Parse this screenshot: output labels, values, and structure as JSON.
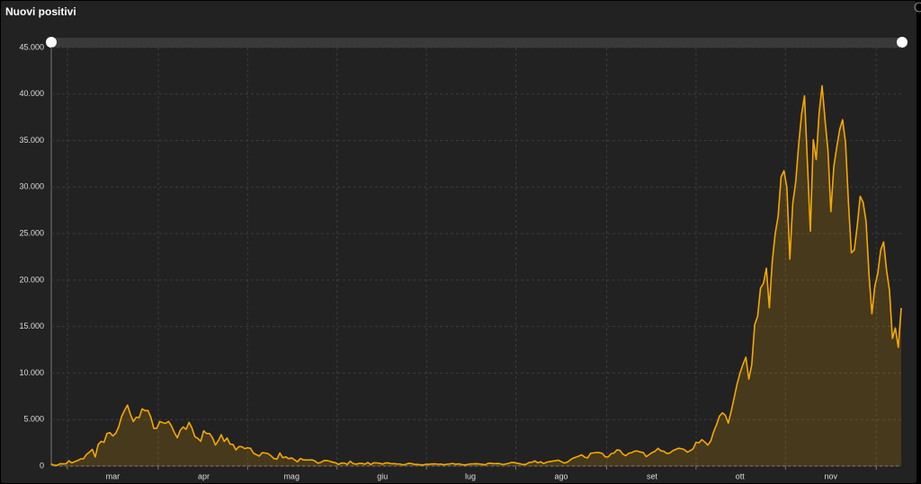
{
  "chart_data": {
    "type": "area",
    "title": "Nuovi positivi",
    "categories": [
      null,
      null,
      null,
      null,
      null,
      null,
      null,
      null,
      null,
      null,
      null,
      null,
      null,
      null,
      null,
      null,
      null,
      null,
      null,
      null,
      null,
      "mar",
      null,
      null,
      null,
      null,
      null,
      null,
      null,
      null,
      null,
      null,
      null,
      null,
      null,
      null,
      null,
      null,
      null,
      null,
      null,
      null,
      null,
      null,
      null,
      null,
      null,
      null,
      null,
      null,
      null,
      null,
      "apr",
      null,
      null,
      null,
      null,
      null,
      null,
      null,
      null,
      null,
      null,
      null,
      null,
      null,
      null,
      null,
      null,
      null,
      null,
      null,
      null,
      null,
      null,
      null,
      null,
      null,
      null,
      null,
      null,
      null,
      "mag",
      null,
      null,
      null,
      null,
      null,
      null,
      null,
      null,
      null,
      null,
      null,
      null,
      null,
      null,
      null,
      null,
      null,
      null,
      null,
      null,
      null,
      null,
      null,
      null,
      null,
      null,
      null,
      null,
      null,
      null,
      "giu",
      null,
      null,
      null,
      null,
      null,
      null,
      null,
      null,
      null,
      null,
      null,
      null,
      null,
      null,
      null,
      null,
      null,
      null,
      null,
      null,
      null,
      null,
      null,
      null,
      null,
      null,
      null,
      null,
      null,
      "lug",
      null,
      null,
      null,
      null,
      null,
      null,
      null,
      null,
      null,
      null,
      null,
      null,
      null,
      null,
      null,
      null,
      null,
      null,
      null,
      null,
      null,
      null,
      null,
      null,
      null,
      null,
      null,
      null,
      null,
      null,
      "ago",
      null,
      null,
      null,
      null,
      null,
      null,
      null,
      null,
      null,
      null,
      null,
      null,
      null,
      null,
      null,
      null,
      null,
      null,
      null,
      null,
      null,
      null,
      null,
      null,
      null,
      null,
      null,
      null,
      null,
      null,
      "set",
      null,
      null,
      null,
      null,
      null,
      null,
      null,
      null,
      null,
      null,
      null,
      null,
      null,
      null,
      null,
      null,
      null,
      null,
      null,
      null,
      null,
      null,
      null,
      null,
      null,
      null,
      null,
      null,
      null,
      "ott",
      null,
      null,
      null,
      null,
      null,
      null,
      null,
      null,
      null,
      null,
      null,
      null,
      null,
      null,
      null,
      null,
      null,
      null,
      null,
      null,
      null,
      null,
      null,
      null,
      null,
      null,
      null,
      null,
      null,
      null,
      "nov",
      null,
      null,
      null,
      null,
      null,
      null,
      null,
      null,
      null,
      null,
      null,
      null,
      null,
      null,
      null,
      null,
      null,
      null,
      null,
      null,
      null,
      null,
      null,
      null
    ],
    "values": [
      221,
      93,
      78,
      250,
      238,
      240,
      566,
      342,
      466,
      587,
      769,
      778,
      1247,
      1492,
      1797,
      977,
      2313,
      2651,
      2547,
      3497,
      3590,
      3233,
      3526,
      4207,
      5322,
      5986,
      6557,
      5560,
      4789,
      5249,
      5210,
      6153,
      5959,
      5974,
      5217,
      4050,
      4053,
      4782,
      4668,
      4585,
      4805,
      4316,
      3599,
      3039,
      3836,
      4204,
      3951,
      4694,
      4092,
      3153,
      2972,
      2667,
      3786,
      3493,
      3491,
      3047,
      2256,
      2729,
      3370,
      2646,
      3021,
      2357,
      2324,
      1739,
      2091,
      2086,
      1872,
      1965,
      1900,
      1389,
      1221,
      1075,
      1444,
      1401,
      1327,
      1083,
      802,
      744,
      1402,
      888,
      992,
      789,
      875,
      675,
      451,
      813,
      665,
      642,
      652,
      669,
      531,
      300,
      397,
      584,
      593,
      516,
      416,
      355,
      178,
      318,
      321,
      177,
      518,
      270,
      197,
      280,
      283,
      202,
      379,
      163,
      346,
      338,
      301,
      210,
      329,
      333,
      251,
      262,
      224,
      218,
      122,
      190,
      296,
      259,
      175,
      174,
      126,
      142,
      187,
      201,
      223,
      235,
      192,
      208,
      138,
      193,
      229,
      276,
      188,
      234,
      169,
      114,
      163,
      230,
      233,
      249,
      219,
      190,
      129,
      282,
      306,
      252,
      275,
      255,
      170,
      212,
      289,
      386,
      379,
      295,
      239,
      159,
      190,
      384,
      402,
      552,
      347,
      463,
      259,
      412,
      481,
      523,
      574,
      629,
      479,
      320,
      403,
      642,
      845,
      947,
      1071,
      1210,
      953,
      878,
      1367,
      1411,
      1462,
      1444,
      1365,
      996,
      978,
      1326,
      1397,
      1733,
      1695,
      1297,
      1108,
      1370,
      1434,
      1597,
      1616,
      1501,
      1458,
      1008,
      1229,
      1452,
      1585,
      1907,
      1638,
      1587,
      1350,
      1392,
      1640,
      1786,
      1912,
      1869,
      1766,
      1494,
      1648,
      1851,
      2548,
      2499,
      2844,
      2578,
      2257,
      2677,
      3678,
      4458,
      5372,
      5724,
      5456,
      4619,
      5901,
      7332,
      8804,
      10010,
      10925,
      11705,
      9338,
      10874,
      15199,
      16079,
      19143,
      19644,
      21273,
      17012,
      21994,
      24991,
      26831,
      31084,
      31758,
      29907,
      22253,
      28244,
      30550,
      34505,
      37809,
      39811,
      32616,
      25271,
      35098,
      32961,
      37978,
      40902,
      37255,
      33979,
      27354,
      32191,
      34283,
      36176,
      37242,
      34767,
      28337,
      22930,
      23232,
      25853,
      29003,
      28352,
      26323,
      20648,
      16377,
      19350,
      20709,
      23225,
      24099,
      21052,
      18887,
      13720,
      14842,
      12756,
      16999
    ],
    "color": "#f5a800",
    "ylim": [
      0,
      45000
    ],
    "yticks": [
      0,
      {
        "value": 5000,
        "label": "5.000"
      },
      {
        "value": 10000,
        "label": "10.000"
      },
      {
        "value": 15000,
        "label": "15.000"
      },
      {
        "value": 20000,
        "label": "20.000"
      },
      {
        "value": 25000,
        "label": "25.000"
      },
      {
        "value": 30000,
        "label": "30.000"
      },
      {
        "value": 35000,
        "label": "35.000"
      },
      {
        "value": 40000,
        "label": "40.000"
      },
      {
        "value": 45000,
        "label": "45.000"
      }
    ],
    "grid": true
  }
}
